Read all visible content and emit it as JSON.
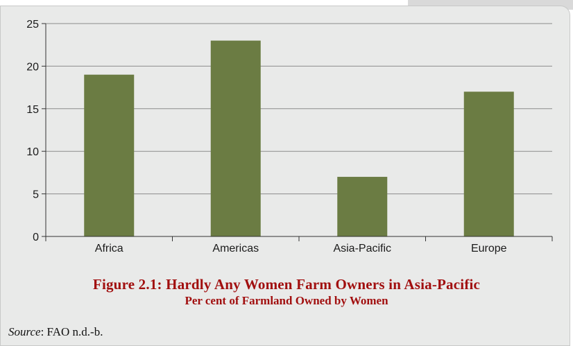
{
  "chart_data": {
    "type": "bar",
    "categories": [
      "Africa",
      "Americas",
      "Asia-Pacific",
      "Europe"
    ],
    "values": [
      19,
      23,
      7,
      17
    ],
    "ylim": [
      0,
      25
    ],
    "yticks": [
      0,
      5,
      10,
      15,
      20,
      25
    ],
    "grid": true,
    "bar_color": "#6b7c43",
    "title": "Figure 2.1: Hardly Any Women Farm Owners in Asia-Pacific",
    "subtitle": "Per cent of Farmland Owned by Women",
    "xlabel": "",
    "ylabel": ""
  },
  "source": {
    "label": "Source",
    "text": ": FAO n.d.-b."
  },
  "colors": {
    "title": "#a10f0f",
    "panel": "#e9eae9",
    "grid": "#8c8c8c"
  }
}
